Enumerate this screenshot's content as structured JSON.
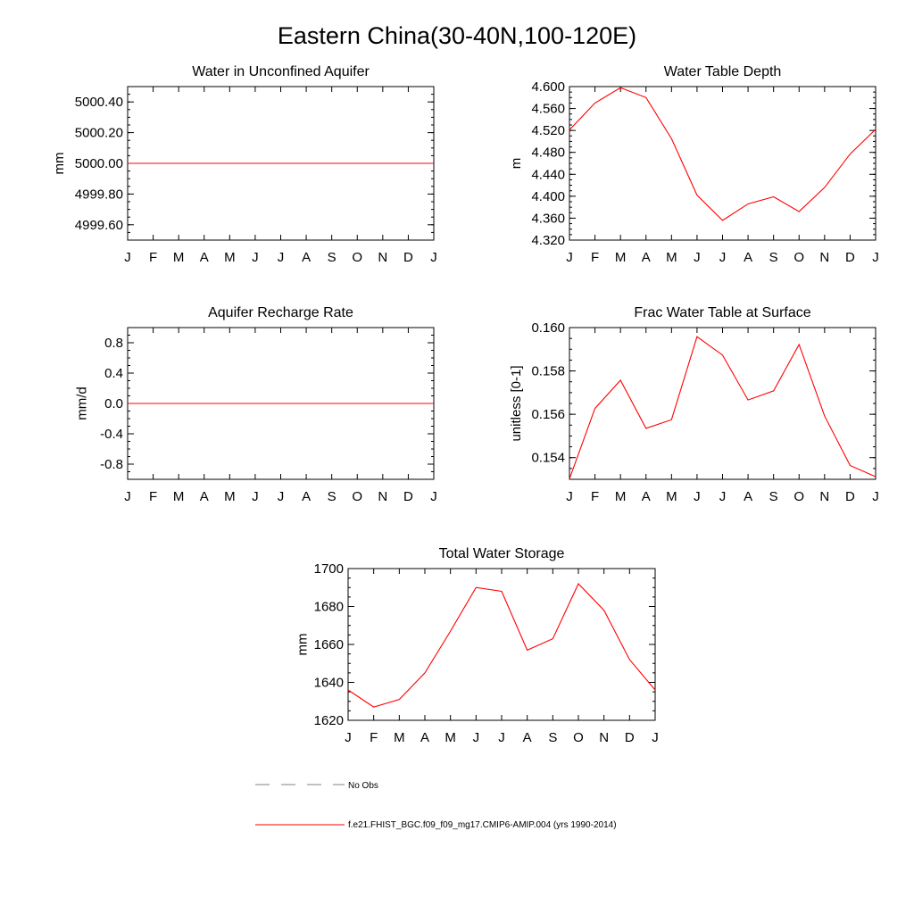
{
  "page_title": "Eastern China(30-40N,100-120E)",
  "legend": {
    "items": [
      {
        "label": "No Obs",
        "color": "#808080",
        "dash": true
      },
      {
        "label": "f.e21.FHIST_BGC.f09_f09_mg17.CMIP6-AMIP.004 (yrs 1990-2014)",
        "color": "#ff0000",
        "dash": false
      }
    ]
  },
  "chart_data": [
    {
      "type": "line",
      "title": "Water in Unconfined Aquifer",
      "ylabel": "mm",
      "xlabel": "",
      "categories": [
        "J",
        "F",
        "M",
        "A",
        "M",
        "J",
        "J",
        "A",
        "S",
        "O",
        "N",
        "D",
        "J"
      ],
      "ylim": [
        4999.5,
        5000.5
      ],
      "yticks": [
        4999.6,
        4999.8,
        5000.0,
        5000.2,
        5000.4
      ],
      "ytick_labels": [
        "4999.60",
        "4999.80",
        "5000.00",
        "5000.20",
        "5000.40"
      ],
      "ytick_minor_step": 0.05,
      "series": [
        {
          "name": "f.e21.FHIST_BGC.f09_f09_mg17.CMIP6-AMIP.004 (yrs 1990-2014)",
          "color": "#ff0000",
          "values": [
            5000,
            5000,
            5000,
            5000,
            5000,
            5000,
            5000,
            5000,
            5000,
            5000,
            5000,
            5000,
            5000
          ]
        }
      ]
    },
    {
      "type": "line",
      "title": "Water Table Depth",
      "ylabel": "m",
      "xlabel": "",
      "categories": [
        "J",
        "F",
        "M",
        "A",
        "M",
        "J",
        "J",
        "A",
        "S",
        "O",
        "N",
        "D",
        "J"
      ],
      "ylim": [
        4.32,
        4.6
      ],
      "yticks": [
        4.32,
        4.36,
        4.4,
        4.44,
        4.48,
        4.52,
        4.56,
        4.6
      ],
      "ytick_labels": [
        "4.320",
        "4.360",
        "4.400",
        "4.440",
        "4.480",
        "4.520",
        "4.560",
        "4.600"
      ],
      "ytick_minor_step": 0.01,
      "series": [
        {
          "name": "f.e21.FHIST_BGC.f09_f09_mg17.CMIP6-AMIP.004 (yrs 1990-2014)",
          "color": "#ff0000",
          "values": [
            4.521,
            4.57,
            4.598,
            4.58,
            4.505,
            4.402,
            4.356,
            4.386,
            4.399,
            4.372,
            4.416,
            4.477,
            4.522
          ]
        }
      ]
    },
    {
      "type": "line",
      "title": "Aquifer Recharge Rate",
      "ylabel": "mm/d",
      "xlabel": "",
      "categories": [
        "J",
        "F",
        "M",
        "A",
        "M",
        "J",
        "J",
        "A",
        "S",
        "O",
        "N",
        "D",
        "J"
      ],
      "ylim": [
        -1.0,
        1.0
      ],
      "yticks": [
        -0.8,
        -0.4,
        0.0,
        0.4,
        0.8
      ],
      "ytick_labels": [
        "-0.8",
        "-0.4",
        "0.0",
        "0.4",
        "0.8"
      ],
      "ytick_minor_step": 0.1,
      "series": [
        {
          "name": "f.e21.FHIST_BGC.f09_f09_mg17.CMIP6-AMIP.004 (yrs 1990-2014)",
          "color": "#ff0000",
          "values": [
            0,
            0,
            0,
            0,
            0,
            0,
            0,
            0,
            0,
            0,
            0,
            0,
            0
          ]
        }
      ]
    },
    {
      "type": "line",
      "title": "Frac Water Table at Surface",
      "ylabel": "unitless [0-1]",
      "xlabel": "",
      "categories": [
        "J",
        "F",
        "M",
        "A",
        "M",
        "J",
        "J",
        "A",
        "S",
        "O",
        "N",
        "D",
        "J"
      ],
      "ylim": [
        0.153,
        0.16
      ],
      "yticks": [
        0.154,
        0.156,
        0.158,
        0.16
      ],
      "ytick_labels": [
        "0.154",
        "0.156",
        "0.158",
        "0.160"
      ],
      "ytick_minor_step": 0.0005,
      "series": [
        {
          "name": "f.e21.FHIST_BGC.f09_f09_mg17.CMIP6-AMIP.004 (yrs 1990-2014)",
          "color": "#ff0000",
          "values": [
            0.15302,
            0.15627,
            0.15757,
            0.15535,
            0.15575,
            0.15958,
            0.15873,
            0.15666,
            0.15708,
            0.15922,
            0.15592,
            0.15364,
            0.15312
          ]
        }
      ]
    },
    {
      "type": "line",
      "title": "Total Water Storage",
      "ylabel": "mm",
      "xlabel": "",
      "categories": [
        "J",
        "F",
        "M",
        "A",
        "M",
        "J",
        "J",
        "A",
        "S",
        "O",
        "N",
        "D",
        "J"
      ],
      "ylim": [
        1620,
        1700
      ],
      "yticks": [
        1620,
        1640,
        1660,
        1680,
        1700
      ],
      "ytick_labels": [
        "1620",
        "1640",
        "1660",
        "1680",
        "1700"
      ],
      "ytick_minor_step": 5,
      "series": [
        {
          "name": "f.e21.FHIST_BGC.f09_f09_mg17.CMIP6-AMIP.004 (yrs 1990-2014)",
          "color": "#ff0000",
          "values": [
            1636,
            1627,
            1631,
            1645,
            1667,
            1690,
            1688,
            1657,
            1663,
            1692,
            1678,
            1652,
            1636
          ]
        }
      ]
    }
  ]
}
